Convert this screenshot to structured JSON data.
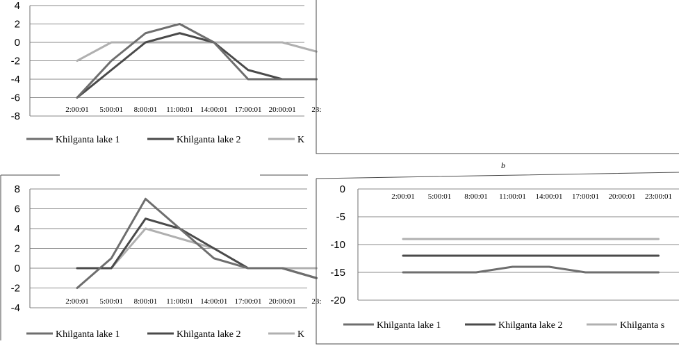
{
  "chart_data": [
    {
      "type": "line",
      "panel": "top-left",
      "x": [
        "2:00:01",
        "5:00:01",
        "8:00:01",
        "11:00:01",
        "14:00:01",
        "17:00:01",
        "20:00:01",
        "23:"
      ],
      "ylim": [
        -8,
        4
      ],
      "yticks": [
        4,
        2,
        0,
        -2,
        -4,
        -6,
        -8
      ],
      "grid": true,
      "legend_placement": "bottom",
      "series": [
        {
          "name": "Khilganta lake 1",
          "color": "#6e6e6e",
          "values": [
            -6,
            -2,
            1,
            2,
            0,
            -4,
            -4,
            -4
          ]
        },
        {
          "name": "Khilganta lake 2",
          "color": "#4a4a4a",
          "values": [
            -6,
            -3,
            0,
            1,
            0,
            -3,
            -4,
            -4
          ]
        },
        {
          "name": "K",
          "color": "#b0b0b0",
          "values": [
            -2,
            0,
            0,
            0,
            0,
            0,
            0,
            -1
          ]
        }
      ]
    },
    {
      "type": "line",
      "panel": "top-right",
      "label": "b",
      "series": []
    },
    {
      "type": "line",
      "panel": "bottom-left",
      "x": [
        "2:00:01",
        "5:00:01",
        "8:00:01",
        "11:00:01",
        "14:00:01",
        "17:00:01",
        "20:00:01",
        "23:"
      ],
      "ylim": [
        -4,
        8
      ],
      "yticks": [
        8,
        6,
        4,
        2,
        0,
        -2,
        -4
      ],
      "grid": true,
      "legend_placement": "bottom",
      "series": [
        {
          "name": "Khilganta lake 1",
          "color": "#6e6e6e",
          "values": [
            -2,
            1,
            7,
            4,
            1,
            0,
            0,
            -1
          ]
        },
        {
          "name": "Khilganta lake 2",
          "color": "#4a4a4a",
          "values": [
            0,
            0,
            5,
            4,
            2,
            0,
            0,
            -1
          ]
        },
        {
          "name": "K",
          "color": "#b0b0b0",
          "values": [
            0,
            0,
            4,
            3,
            2,
            0,
            0,
            0
          ]
        }
      ]
    },
    {
      "type": "line",
      "panel": "bottom-right",
      "x": [
        "2:00:01",
        "5:00:01",
        "8:00:01",
        "11:00:01",
        "14:00:01",
        "17:00:01",
        "20:00:01",
        "23:00:01"
      ],
      "ylim": [
        -20,
        0
      ],
      "yticks": [
        0,
        -5,
        -10,
        -15,
        -20
      ],
      "grid": true,
      "legend_placement": "bottom",
      "series": [
        {
          "name": "Khilganta lake 1",
          "color": "#6e6e6e",
          "values": [
            -15,
            -15,
            -15,
            -14,
            -14,
            -15,
            -15,
            -15
          ]
        },
        {
          "name": "Khilganta lake 2",
          "color": "#4a4a4a",
          "values": [
            -12,
            -12,
            -12,
            -12,
            -12,
            -12,
            -12,
            -12
          ]
        },
        {
          "name": "Khilganta s",
          "color": "#b0b0b0",
          "values": [
            -9,
            -9,
            -9,
            -9,
            -9,
            -9,
            -9,
            -9
          ]
        }
      ]
    }
  ]
}
